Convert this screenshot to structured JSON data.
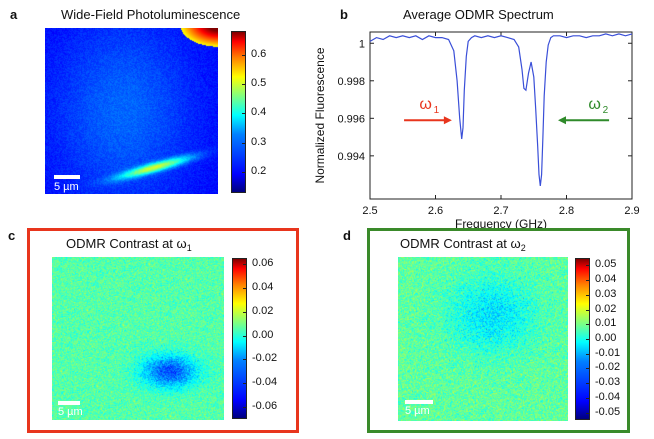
{
  "panels": {
    "a": {
      "letter": "a",
      "title": "Wide-Field Photoluminescence",
      "scalebar": "5 µm",
      "colorbar_ticks": [
        "0.6",
        "0.5",
        "0.4",
        "0.3",
        "0.2"
      ],
      "colorbar_range": [
        0.13,
        0.68
      ]
    },
    "b": {
      "letter": "b",
      "title": "Average ODMR Spectrum"
    },
    "c": {
      "letter": "c",
      "title_main": "ODMR Contrast at ω",
      "title_sub": "1",
      "scalebar": "5 µm",
      "colorbar_ticks": [
        "0.06",
        "0.04",
        "0.02",
        "0.00",
        "-0.02",
        "-0.04",
        "-0.06"
      ],
      "colorbar_range": [
        -0.07,
        0.065
      ],
      "frame_color": "#e8351d"
    },
    "d": {
      "letter": "d",
      "title_main": "ODMR Contrast at ω",
      "title_sub": "2",
      "scalebar": "5 µm",
      "colorbar_ticks": [
        "0.05",
        "0.04",
        "0.03",
        "0.02",
        "0.01",
        "0.00",
        "-0.01",
        "-0.02",
        "-0.03",
        "-0.04",
        "-0.05"
      ],
      "colorbar_range": [
        -0.055,
        0.055
      ],
      "frame_color": "#3a8a2a"
    }
  },
  "chart_data": {
    "type": "line",
    "title": "Average ODMR Spectrum",
    "xlabel": "Frequency (GHz)",
    "ylabel": "Normalized Fluorescence",
    "xlim": [
      2.5,
      2.9
    ],
    "ylim": [
      0.9917,
      1.0006
    ],
    "xticks": [
      2.5,
      2.6,
      2.7,
      2.8,
      2.9
    ],
    "yticks": [
      0.994,
      0.996,
      0.998,
      1
    ],
    "ytick_labels": [
      "0.994",
      "0.996",
      "0.998",
      "1"
    ],
    "line_color": "#3a4fd8",
    "series": [
      {
        "x": [
          2.5,
          2.51,
          2.52,
          2.53,
          2.54,
          2.55,
          2.56,
          2.57,
          2.58,
          2.59,
          2.6,
          2.61,
          2.62,
          2.628,
          2.633,
          2.637,
          2.64,
          2.642,
          2.644,
          2.647,
          2.65,
          2.655,
          2.66,
          2.67,
          2.68,
          2.69,
          2.7,
          2.71,
          2.72,
          2.727,
          2.732,
          2.735,
          2.738,
          2.742,
          2.746,
          2.75,
          2.753,
          2.756,
          2.758,
          2.76,
          2.762,
          2.764,
          2.766,
          2.769,
          2.772,
          2.776,
          2.78,
          2.79,
          2.8,
          2.81,
          2.82,
          2.83,
          2.84,
          2.85,
          2.86,
          2.87,
          2.88,
          2.89,
          2.9
        ],
        "y": [
          1.0001,
          1.0003,
          1.0002,
          1.0004,
          1.0003,
          1.0004,
          1.0003,
          1.0004,
          1.0002,
          1.0004,
          1.0003,
          1.0003,
          1.0002,
          0.9996,
          0.998,
          0.996,
          0.9949,
          0.9955,
          0.9975,
          0.9993,
          1.0001,
          1.0003,
          1.0004,
          1.0003,
          1.0004,
          1.0003,
          1.0004,
          1.0003,
          1.0002,
          0.9998,
          0.9986,
          0.9976,
          0.9975,
          0.9984,
          0.999,
          0.9982,
          0.9965,
          0.9945,
          0.993,
          0.9924,
          0.993,
          0.995,
          0.9972,
          0.999,
          0.9999,
          1.0003,
          1.0004,
          1.0004,
          1.0003,
          1.0004,
          1.0004,
          1.0003,
          1.0004,
          1.0004,
          1.0005,
          1.0004,
          1.0005,
          1.0004,
          1.0005
        ]
      }
    ],
    "annotations": [
      {
        "label": "ω",
        "sub": "1",
        "color": "#e8351d",
        "arrow": "right"
      },
      {
        "label": "ω",
        "sub": "2",
        "color": "#2f8a2a",
        "arrow": "left"
      }
    ]
  }
}
